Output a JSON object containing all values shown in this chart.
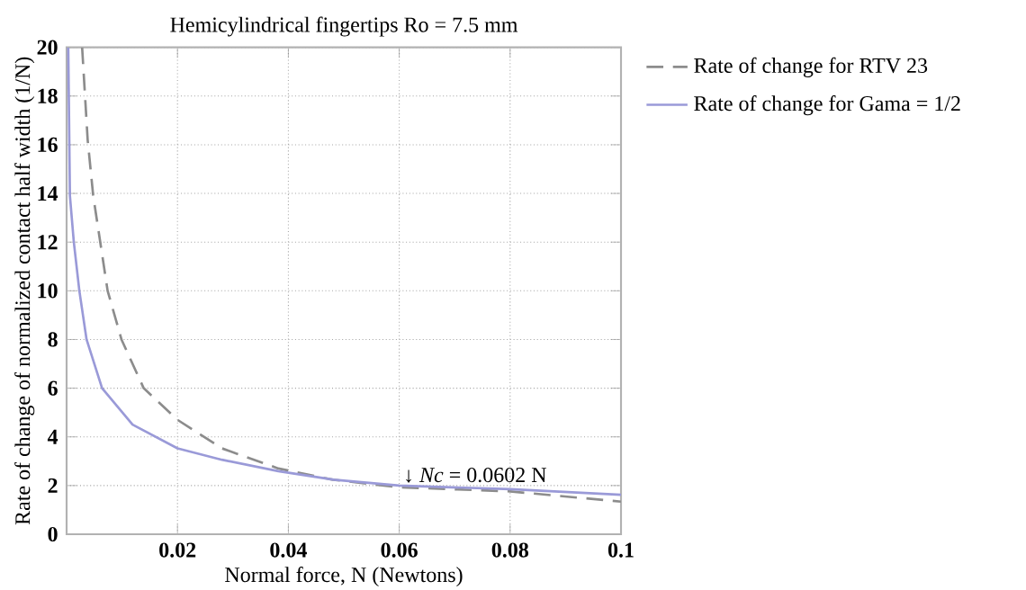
{
  "chart_data": {
    "type": "line",
    "title": "Hemicylindrical fingertips Ro = 7.5 mm",
    "xlabel": "Normal force, N (Newtons)",
    "ylabel": "Rate of change of normalized contact half width (1/N)",
    "xlim": [
      0,
      0.1
    ],
    "ylim": [
      0,
      20
    ],
    "xticks": [
      0.02,
      0.04,
      0.06,
      0.08,
      0.1
    ],
    "yticks": [
      0,
      2,
      4,
      6,
      8,
      10,
      12,
      14,
      16,
      18,
      20
    ],
    "grid": true,
    "legend": "top right",
    "series": [
      {
        "name": "Rate of change for RTV 23",
        "color": "#8c8c8c",
        "line_style": "dashed",
        "x": [
          0.0028,
          0.0038,
          0.0048,
          0.0074,
          0.0099,
          0.0139,
          0.02,
          0.028,
          0.0382,
          0.048,
          0.06,
          0.08,
          0.1
        ],
        "values": [
          20,
          16.2,
          13.9,
          10,
          8,
          6,
          4.7,
          3.53,
          2.7,
          2.24,
          1.93,
          1.76,
          1.34
        ]
      },
      {
        "name": "Rate of change for Gama = 1/2",
        "color": "#9a9ad8",
        "line_style": "solid",
        "x": [
          0.0003,
          0.0006,
          0.0013,
          0.0023,
          0.0036,
          0.0064,
          0.0119,
          0.02,
          0.028,
          0.0382,
          0.0482,
          0.06,
          0.08,
          0.1
        ],
        "values": [
          20,
          13.9,
          12,
          10,
          8,
          6,
          4.5,
          3.53,
          3.06,
          2.59,
          2.24,
          2.0,
          1.85,
          1.62
        ]
      }
    ],
    "annotations": [
      {
        "text": "↓ *Nc* = 0.0602 N",
        "x": 0.0602,
        "y": 2
      }
    ]
  }
}
